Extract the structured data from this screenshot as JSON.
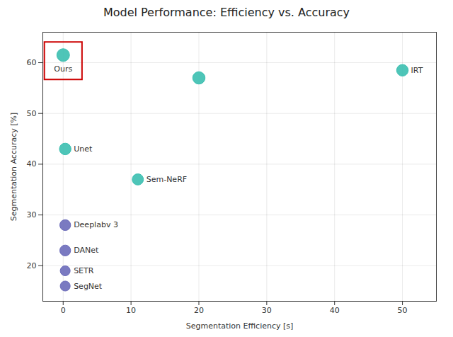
{
  "chart_data": {
    "type": "scatter",
    "title": "Model Performance: Efficiency vs. Accuracy",
    "xlabel": "Segmentation Efficiency [s]",
    "ylabel": "Segmentation Accuracy [%]",
    "x": [
      0,
      50,
      20,
      0.3,
      11,
      0.3,
      0.3,
      0.3,
      0.3
    ],
    "values": [
      61.5,
      58.5,
      57,
      43,
      37,
      28,
      23,
      19,
      16
    ],
    "labels": [
      "Ours",
      "IRT",
      null,
      "Unet",
      "Sem-NeRF",
      "Deeplabv 3",
      "DANet",
      "SETR",
      "SegNet"
    ],
    "sizes": [
      180,
      150,
      170,
      150,
      140,
      130,
      130,
      110,
      110
    ],
    "colors": [
      "#3bbfb0",
      "#3bbfb0",
      "#3bbfb0",
      "#3bbfb0",
      "#3bbfb0",
      "#6b6bba",
      "#6b6bba",
      "#6b6bba",
      "#6b6bba"
    ],
    "highlight": [
      true,
      false,
      false,
      false,
      false,
      false,
      false,
      false,
      false
    ],
    "highlight_color": "#cc0000",
    "xlim": [
      -3,
      55
    ],
    "ylim": [
      13,
      66
    ],
    "xticks": [
      0,
      10,
      20,
      30,
      40,
      50
    ],
    "yticks": [
      20,
      30,
      40,
      50,
      60
    ],
    "grid": true
  }
}
